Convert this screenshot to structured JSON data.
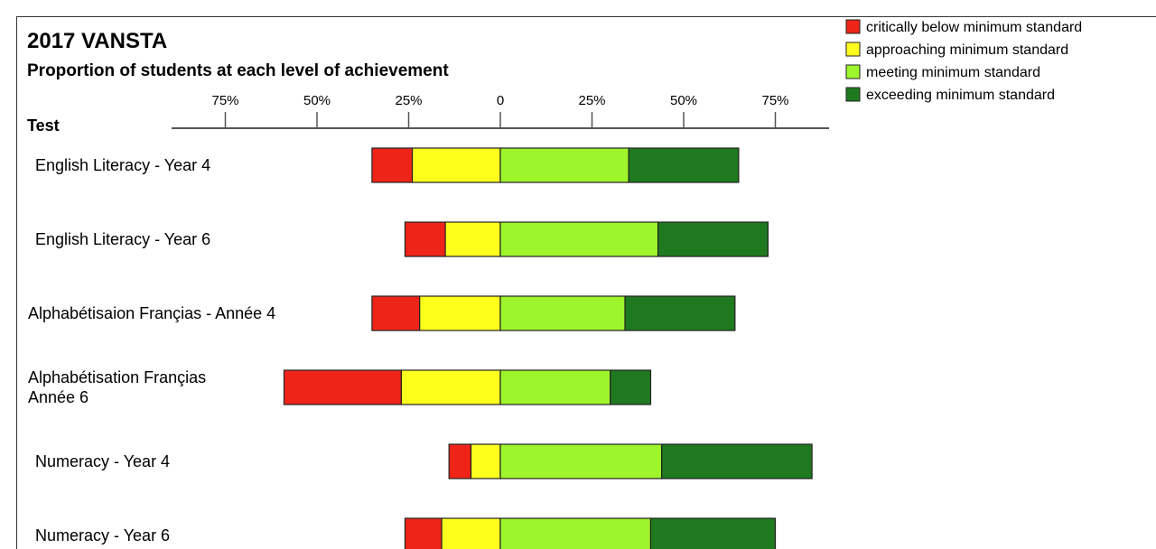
{
  "chart_data": {
    "type": "bar",
    "subtype": "diverging-stacked-bar",
    "title": "2017 VANSTA",
    "subtitle": "Proportion of students at each level of achievement",
    "ylabel": "Test",
    "xticks": [
      "75%",
      "50%",
      "25%",
      "0",
      "25%",
      "50%",
      "75%"
    ],
    "xlim": [
      -75,
      75
    ],
    "categories": [
      [
        "English Literacy - Year 4"
      ],
      [
        "English Literacy - Year 6"
      ],
      [
        "Alphabétisaion Françias - Année 4"
      ],
      [
        "Alphabétisation Françias",
        "Année 6"
      ],
      [
        "Numeracy - Year 4"
      ],
      [
        "Numeracy - Year 6"
      ]
    ],
    "series": [
      {
        "name": "critically below minimum standard",
        "color": "#ef2418",
        "values": [
          11,
          11,
          13,
          32,
          6,
          10
        ]
      },
      {
        "name": "approaching minimum standard",
        "color": "#ffff1e",
        "values": [
          24,
          15,
          22,
          27,
          8,
          16
        ]
      },
      {
        "name": "meeting minimum standard",
        "color": "#9ef52c",
        "values": [
          35,
          43,
          34,
          30,
          44,
          41
        ]
      },
      {
        "name": "exceeding minimum standard",
        "color": "#1f7a1f",
        "values": [
          30,
          30,
          30,
          11,
          41,
          34
        ]
      }
    ],
    "legend_position": "top-right",
    "grid": false
  }
}
